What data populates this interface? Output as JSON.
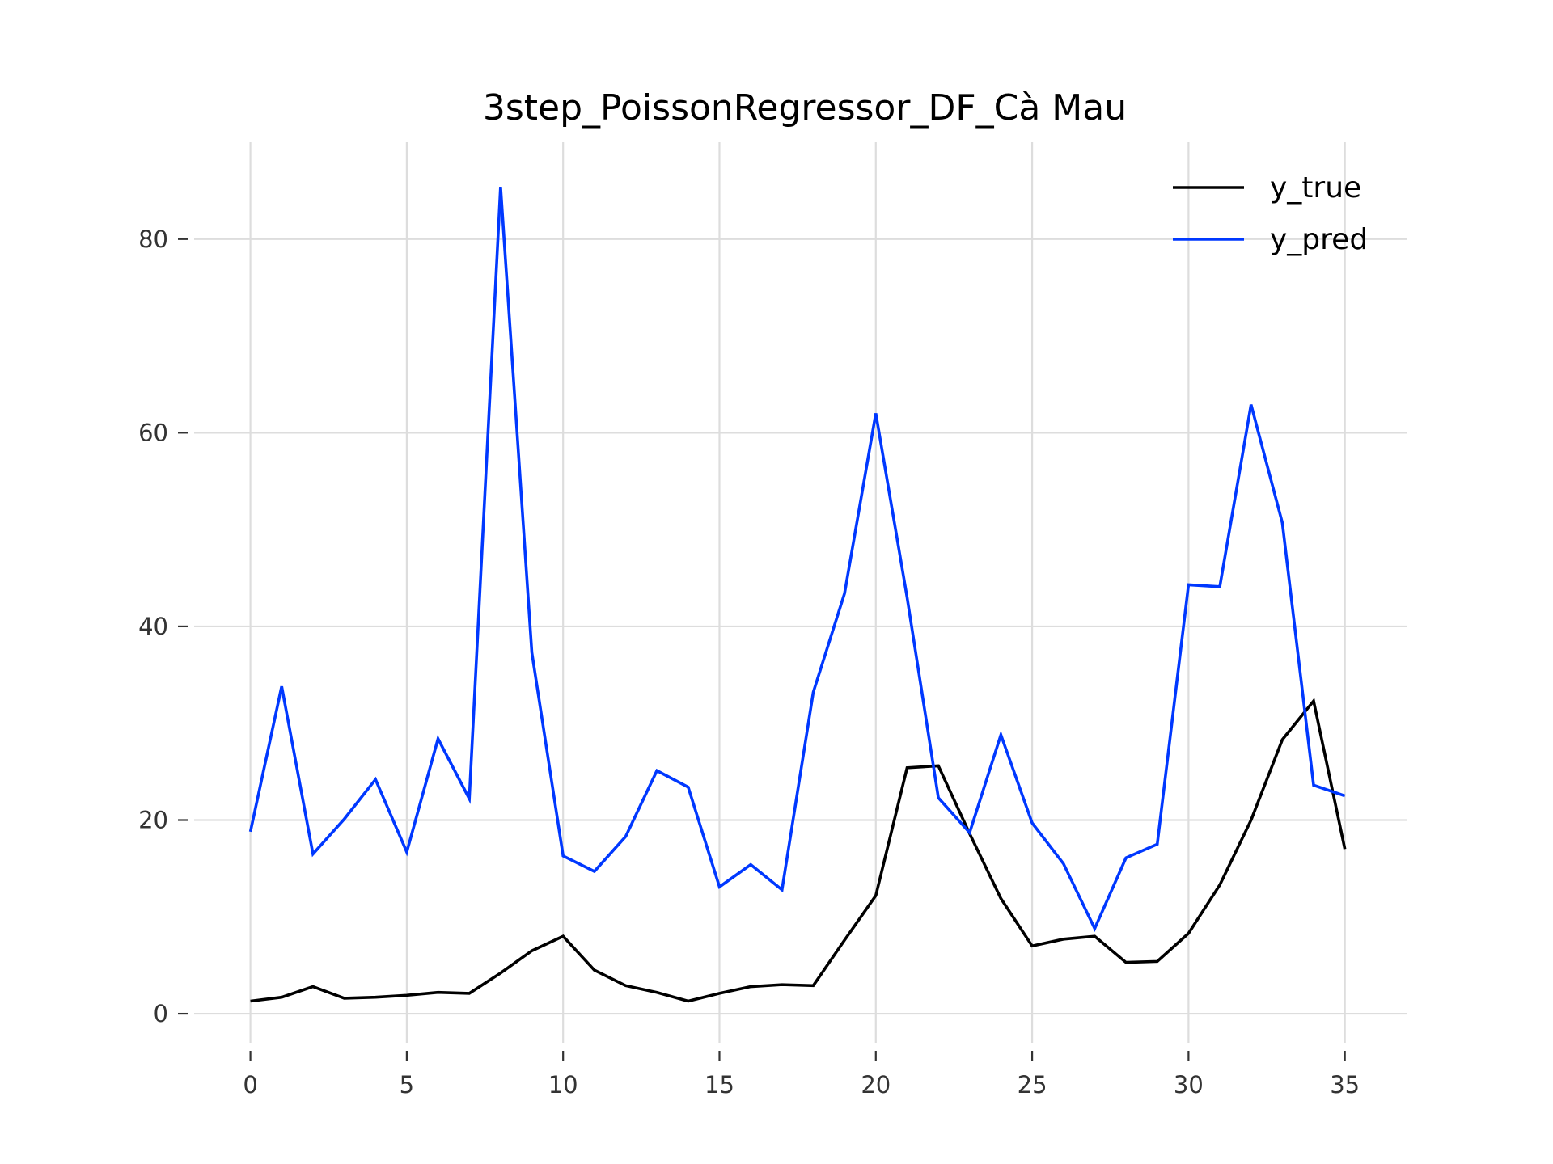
{
  "chart_data": {
    "type": "line",
    "title": "3step_PoissonRegressor_DF_Cà Mau",
    "xlabel": "",
    "ylabel": "",
    "xlim": [
      -1.8,
      37.0
    ],
    "ylim": [
      -3.0,
      90.0
    ],
    "xticks": [
      0,
      5,
      10,
      15,
      20,
      25,
      30,
      35
    ],
    "yticks": [
      0,
      20,
      40,
      60,
      80
    ],
    "grid": true,
    "legend_position": "top-right",
    "x": [
      0,
      1,
      2,
      3,
      4,
      5,
      6,
      7,
      8,
      9,
      10,
      11,
      12,
      13,
      14,
      15,
      16,
      17,
      18,
      19,
      20,
      21,
      22,
      23,
      24,
      25,
      26,
      27,
      28,
      29,
      30,
      31,
      32,
      33,
      34,
      35
    ],
    "series": [
      {
        "name": "y_true",
        "color": "#000000",
        "values": [
          1.3,
          1.7,
          2.8,
          1.6,
          1.7,
          1.9,
          2.2,
          2.1,
          4.2,
          6.5,
          8.0,
          4.5,
          2.9,
          2.2,
          1.3,
          2.1,
          2.8,
          3.0,
          2.9,
          7.6,
          12.2,
          25.4,
          25.6,
          18.6,
          11.9,
          7.0,
          7.7,
          8.0,
          5.3,
          5.4,
          8.3,
          13.3,
          20.0,
          28.3,
          32.3,
          17.0
        ]
      },
      {
        "name": "y_pred",
        "color": "#0038ff",
        "values": [
          18.8,
          33.8,
          16.5,
          20.1,
          24.2,
          16.7,
          28.4,
          22.2,
          85.4,
          37.3,
          16.3,
          14.7,
          18.3,
          25.1,
          23.4,
          13.1,
          15.4,
          12.8,
          33.2,
          43.4,
          62.0,
          43.0,
          22.3,
          18.7,
          28.8,
          19.7,
          15.5,
          8.8,
          16.1,
          17.5,
          44.3,
          44.1,
          62.9,
          50.7,
          23.6,
          22.5
        ]
      }
    ]
  }
}
